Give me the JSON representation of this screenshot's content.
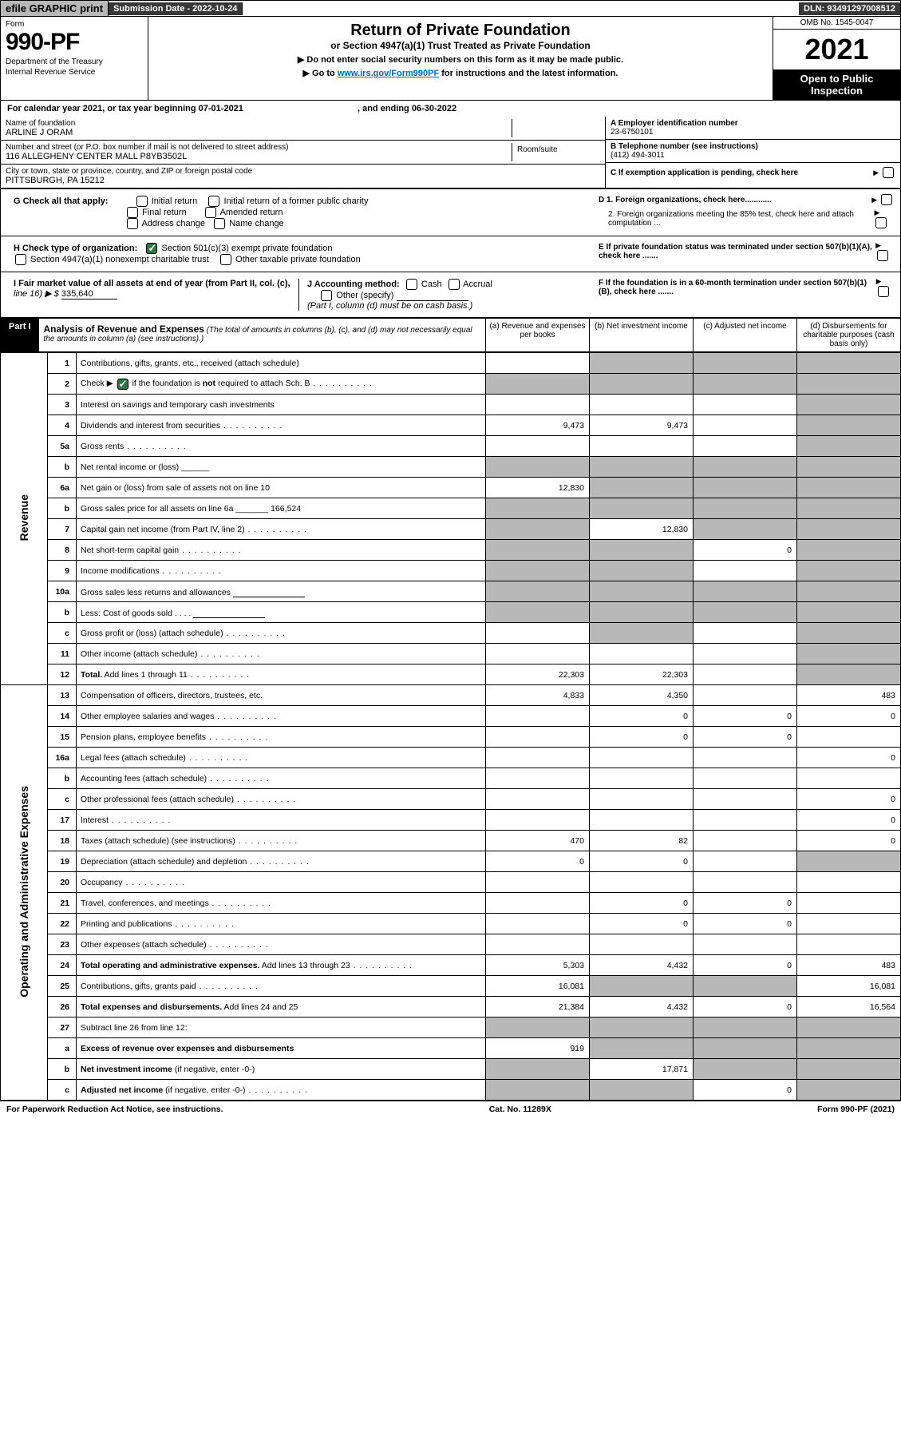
{
  "topbar": {
    "efile": "efile GRAPHIC print",
    "submission": "Submission Date - 2022-10-24",
    "dln": "DLN: 93491297008512"
  },
  "header": {
    "form_label": "Form",
    "form_num": "990-PF",
    "dept1": "Department of the Treasury",
    "dept2": "Internal Revenue Service",
    "title": "Return of Private Foundation",
    "subtitle": "or Section 4947(a)(1) Trust Treated as Private Foundation",
    "instr1": "▶ Do not enter social security numbers on this form as it may be made public.",
    "instr2_pre": "▶ Go to ",
    "instr2_link": "www.irs.gov/Form990PF",
    "instr2_post": " for instructions and the latest information.",
    "omb": "OMB No. 1545-0047",
    "year": "2021",
    "open": "Open to Public Inspection"
  },
  "calyear": {
    "text": "For calendar year 2021, or tax year beginning 07-01-2021",
    "ending": ", and ending 06-30-2022"
  },
  "ident": {
    "name_label": "Name of foundation",
    "name": "ARLINE J ORAM",
    "addr_label": "Number and street (or P.O. box number if mail is not delivered to street address)",
    "addr": "116 ALLEGHENY CENTER MALL P8YB3502L",
    "room_label": "Room/suite",
    "city_label": "City or town, state or province, country, and ZIP or foreign postal code",
    "city": "PITTSBURGH, PA  15212",
    "a_label": "A Employer identification number",
    "ein": "23-6750101",
    "b_label": "B Telephone number (see instructions)",
    "phone": "(412) 494-3011",
    "c_label": "C If exemption application is pending, check here",
    "d1": "D 1. Foreign organizations, check here............",
    "d2": "2. Foreign organizations meeting the 85% test, check here and attach computation ...",
    "e": "E  If private foundation status was terminated under section 507(b)(1)(A), check here .......",
    "f": "F  If the foundation is in a 60-month termination under section 507(b)(1)(B), check here .......",
    "g_label": "G Check all that apply:",
    "g_opts": [
      "Initial return",
      "Initial return of a former public charity",
      "Final return",
      "Amended return",
      "Address change",
      "Name change"
    ],
    "h_label": "H Check type of organization:",
    "h1": "Section 501(c)(3) exempt private foundation",
    "h2": "Section 4947(a)(1) nonexempt charitable trust",
    "h3": "Other taxable private foundation",
    "i_label": "I Fair market value of all assets at end of year (from Part II, col. (c),",
    "i_line": "line 16) ▶ $",
    "i_val": "335,640",
    "j_label": "J Accounting method:",
    "j_cash": "Cash",
    "j_accrual": "Accrual",
    "j_other": "Other (specify)",
    "j_note": "(Part I, column (d) must be on cash basis.)"
  },
  "part1": {
    "label": "Part I",
    "title": "Analysis of Revenue and Expenses",
    "note": "(The total of amounts in columns (b), (c), and (d) may not necessarily equal the amounts in column (a) (see instructions).)",
    "col_a": "(a)   Revenue and expenses per books",
    "col_b": "(b)   Net investment income",
    "col_c": "(c)   Adjusted net income",
    "col_d": "(d)   Disbursements for charitable purposes (cash basis only)"
  },
  "side_labels": {
    "revenue": "Revenue",
    "expenses": "Operating and Administrative Expenses"
  },
  "rows": [
    {
      "n": "1",
      "d": "Contributions, gifts, grants, etc., received (attach schedule)",
      "a": "",
      "b": "g",
      "c": "g",
      "dd": "g"
    },
    {
      "n": "2",
      "d": "Check ▶ [✓] if the foundation is <b>not</b> required to attach Sch. B",
      "dots": true,
      "a": "g",
      "b": "g",
      "c": "g",
      "dd": "g"
    },
    {
      "n": "3",
      "d": "Interest on savings and temporary cash investments",
      "a": "",
      "b": "",
      "c": "",
      "dd": "g"
    },
    {
      "n": "4",
      "d": "Dividends and interest from securities",
      "dots": true,
      "a": "9,473",
      "b": "9,473",
      "c": "",
      "dd": "g"
    },
    {
      "n": "5a",
      "d": "Gross rents",
      "dots": true,
      "a": "",
      "b": "",
      "c": "",
      "dd": "g"
    },
    {
      "n": "b",
      "d": "Net rental income or (loss)  ______",
      "a": "g",
      "b": "g",
      "c": "g",
      "dd": "g"
    },
    {
      "n": "6a",
      "d": "Net gain or (loss) from sale of assets not on line 10",
      "a": "12,830",
      "b": "g",
      "c": "g",
      "dd": "g"
    },
    {
      "n": "b",
      "d": "Gross sales price for all assets on line 6a _______ 166,524",
      "a": "g",
      "b": "g",
      "c": "g",
      "dd": "g"
    },
    {
      "n": "7",
      "d": "Capital gain net income (from Part IV, line 2)",
      "dots": true,
      "a": "g",
      "b": "12,830",
      "c": "g",
      "dd": "g"
    },
    {
      "n": "8",
      "d": "Net short-term capital gain",
      "dots": true,
      "a": "g",
      "b": "g",
      "c": "0",
      "dd": "g"
    },
    {
      "n": "9",
      "d": "Income modifications",
      "dots": true,
      "a": "g",
      "b": "g",
      "c": "",
      "dd": "g"
    },
    {
      "n": "10a",
      "d": "Gross sales less returns and allowances  [____]",
      "a": "g",
      "b": "g",
      "c": "g",
      "dd": "g"
    },
    {
      "n": "b",
      "d": "Less: Cost of goods sold   .   .   .   .   [____]",
      "a": "g",
      "b": "g",
      "c": "g",
      "dd": "g"
    },
    {
      "n": "c",
      "d": "Gross profit or (loss) (attach schedule)",
      "dots": true,
      "a": "",
      "b": "g",
      "c": "",
      "dd": "g"
    },
    {
      "n": "11",
      "d": "Other income (attach schedule)",
      "dots": true,
      "a": "",
      "b": "",
      "c": "",
      "dd": "g"
    },
    {
      "n": "12",
      "d": "<b>Total.</b> Add lines 1 through 11",
      "dots": true,
      "a": "22,303",
      "b": "22,303",
      "c": "",
      "dd": "g"
    },
    {
      "n": "13",
      "d": "Compensation of officers, directors, trustees, etc.",
      "a": "4,833",
      "b": "4,350",
      "c": "",
      "dd": "483"
    },
    {
      "n": "14",
      "d": "Other employee salaries and wages",
      "dots": true,
      "a": "",
      "b": "0",
      "c": "0",
      "dd": "0"
    },
    {
      "n": "15",
      "d": "Pension plans, employee benefits",
      "dots": true,
      "a": "",
      "b": "0",
      "c": "0",
      "dd": ""
    },
    {
      "n": "16a",
      "d": "Legal fees (attach schedule)",
      "dots": true,
      "a": "",
      "b": "",
      "c": "",
      "dd": "0"
    },
    {
      "n": "b",
      "d": "Accounting fees (attach schedule)",
      "dots": true,
      "a": "",
      "b": "",
      "c": "",
      "dd": ""
    },
    {
      "n": "c",
      "d": "Other professional fees (attach schedule)",
      "dots": true,
      "a": "",
      "b": "",
      "c": "",
      "dd": "0"
    },
    {
      "n": "17",
      "d": "Interest",
      "dots": true,
      "a": "",
      "b": "",
      "c": "",
      "dd": "0"
    },
    {
      "n": "18",
      "d": "Taxes (attach schedule) (see instructions)",
      "dots": true,
      "a": "470",
      "b": "82",
      "c": "",
      "dd": "0"
    },
    {
      "n": "19",
      "d": "Depreciation (attach schedule) and depletion",
      "dots": true,
      "a": "0",
      "b": "0",
      "c": "",
      "dd": "g"
    },
    {
      "n": "20",
      "d": "Occupancy",
      "dots": true,
      "a": "",
      "b": "",
      "c": "",
      "dd": ""
    },
    {
      "n": "21",
      "d": "Travel, conferences, and meetings",
      "dots": true,
      "a": "",
      "b": "0",
      "c": "0",
      "dd": ""
    },
    {
      "n": "22",
      "d": "Printing and publications",
      "dots": true,
      "a": "",
      "b": "0",
      "c": "0",
      "dd": ""
    },
    {
      "n": "23",
      "d": "Other expenses (attach schedule)",
      "dots": true,
      "a": "",
      "b": "",
      "c": "",
      "dd": ""
    },
    {
      "n": "24",
      "d": "<b>Total operating and administrative expenses.</b> Add lines 13 through 23",
      "dots": true,
      "a": "5,303",
      "b": "4,432",
      "c": "0",
      "dd": "483"
    },
    {
      "n": "25",
      "d": "Contributions, gifts, grants paid",
      "dots": true,
      "a": "16,081",
      "b": "g",
      "c": "g",
      "dd": "16,081"
    },
    {
      "n": "26",
      "d": "<b>Total expenses and disbursements.</b> Add lines 24 and 25",
      "a": "21,384",
      "b": "4,432",
      "c": "0",
      "dd": "16,564"
    },
    {
      "n": "27",
      "d": "Subtract line 26 from line 12:",
      "a": "g",
      "b": "g",
      "c": "g",
      "dd": "g"
    },
    {
      "n": "a",
      "d": "<b>Excess of revenue over expenses and disbursements</b>",
      "a": "919",
      "b": "g",
      "c": "g",
      "dd": "g"
    },
    {
      "n": "b",
      "d": "<b>Net investment income</b> (if negative, enter -0-)",
      "a": "g",
      "b": "17,871",
      "c": "g",
      "dd": "g"
    },
    {
      "n": "c",
      "d": "<b>Adjusted net income</b> (if negative, enter -0-)",
      "dots": true,
      "a": "g",
      "b": "g",
      "c": "0",
      "dd": "g"
    }
  ],
  "footer": {
    "left": "For Paperwork Reduction Act Notice, see instructions.",
    "mid": "Cat. No. 11289X",
    "right": "Form 990-PF (2021)"
  },
  "colors": {
    "grey_cell": "#b8b8b8",
    "dark_bar": "#373737",
    "check_green": "#2a7a3f",
    "link": "#0066cc"
  }
}
